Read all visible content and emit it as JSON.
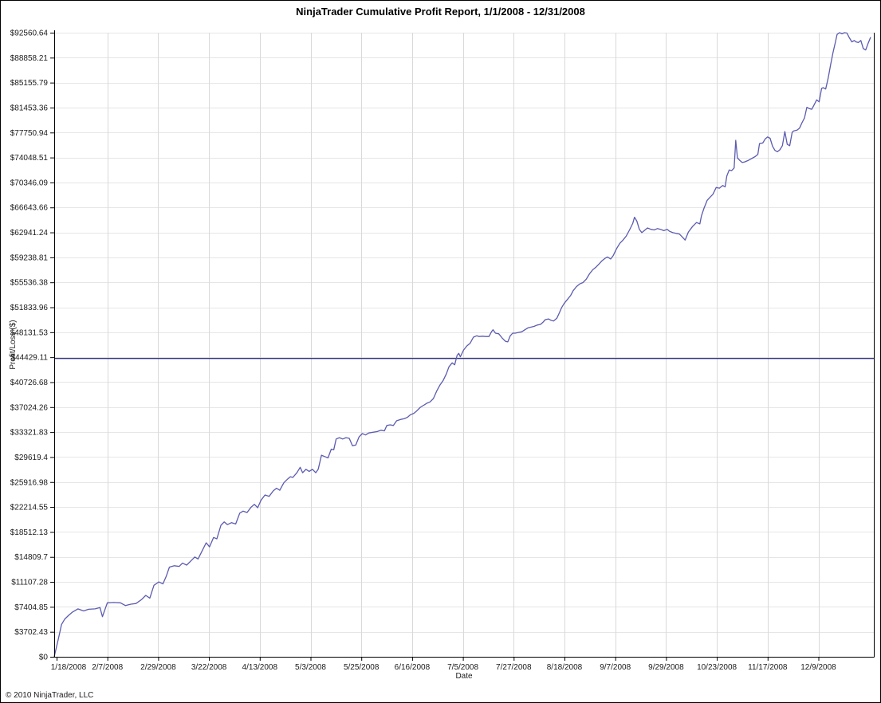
{
  "window": {
    "title": "NinjaTrader Cumulative Profit Report, 1/1/2008 - 12/31/2008"
  },
  "footer": {
    "copyright": "© 2010 NinjaTrader, LLC"
  },
  "colors": {
    "series_line": "#5b5bb0",
    "reference_line": "#32327f",
    "grid_vertical": "#d9d9d9",
    "grid_horizontal": "#e6e6e6",
    "axis": "#000000",
    "label": "#1a1a1a"
  },
  "chart_data": {
    "type": "line",
    "title": "NinjaTrader Cumulative Profit Report, 1/1/2008 - 12/31/2008",
    "xlabel": "Date",
    "ylabel": "Profit/Loss ($)",
    "grid": true,
    "legend": "none",
    "ylim": [
      0,
      92560.64
    ],
    "y_tick_step": 3702.4256,
    "y_tick_labels": [
      "$92560.64",
      "$88858.21",
      "$85155.79",
      "$81453.36",
      "$77750.94",
      "$74048.51",
      "$70346.09",
      "$66643.66",
      "$62941.24",
      "$59238.81",
      "$55536.38",
      "$51833.96",
      "$48131.53",
      "$44429.11",
      "$40726.68",
      "$37024.26",
      "$33321.83",
      "$29619.4",
      "$25916.98",
      "$22214.55",
      "$18512.13",
      "$14809.7",
      "$11107.28",
      "$7404.85",
      "$3702.43",
      "$0"
    ],
    "x_tick_labels": [
      "1/18/2008",
      "2/7/2008",
      "2/29/2008",
      "3/22/2008",
      "4/13/2008",
      "5/3/2008",
      "5/25/2008",
      "6/16/2008",
      "7/5/2008",
      "7/27/2008",
      "8/18/2008",
      "9/7/2008",
      "9/29/2008",
      "10/23/2008",
      "11/17/2008",
      "12/9/2008"
    ],
    "date_range": [
      "1/1/2008",
      "12/31/2008"
    ],
    "reference_line": {
      "value": 44429.11
    },
    "start_value": 0,
    "peak_value": 92560.64,
    "end_value": 91900,
    "series": [
      {
        "name": "Cumulative Profit/Loss",
        "points_time_frac_vs_dollars": [
          [
            0.0,
            0
          ],
          [
            0.005,
            2600
          ],
          [
            0.009,
            4800
          ],
          [
            0.013,
            5600
          ],
          [
            0.018,
            6200
          ],
          [
            0.022,
            6600
          ],
          [
            0.029,
            7100
          ],
          [
            0.036,
            6800
          ],
          [
            0.042,
            7050
          ],
          [
            0.05,
            7100
          ],
          [
            0.056,
            7300
          ],
          [
            0.059,
            5950
          ],
          [
            0.065,
            8000
          ],
          [
            0.073,
            8050
          ],
          [
            0.081,
            8000
          ],
          [
            0.087,
            7600
          ],
          [
            0.094,
            7800
          ],
          [
            0.1,
            7900
          ],
          [
            0.107,
            8500
          ],
          [
            0.112,
            9100
          ],
          [
            0.117,
            8700
          ],
          [
            0.122,
            10600
          ],
          [
            0.128,
            11100
          ],
          [
            0.133,
            10800
          ],
          [
            0.137,
            11900
          ],
          [
            0.141,
            13300
          ],
          [
            0.147,
            13500
          ],
          [
            0.153,
            13400
          ],
          [
            0.157,
            13900
          ],
          [
            0.162,
            13600
          ],
          [
            0.167,
            14200
          ],
          [
            0.172,
            14800
          ],
          [
            0.176,
            14500
          ],
          [
            0.181,
            15700
          ],
          [
            0.186,
            16900
          ],
          [
            0.19,
            16300
          ],
          [
            0.195,
            17700
          ],
          [
            0.199,
            17500
          ],
          [
            0.204,
            19500
          ],
          [
            0.208,
            20000
          ],
          [
            0.212,
            19600
          ],
          [
            0.217,
            19900
          ],
          [
            0.222,
            19700
          ],
          [
            0.227,
            21300
          ],
          [
            0.231,
            21600
          ],
          [
            0.236,
            21400
          ],
          [
            0.241,
            22200
          ],
          [
            0.245,
            22600
          ],
          [
            0.249,
            22100
          ],
          [
            0.253,
            23200
          ],
          [
            0.258,
            24000
          ],
          [
            0.263,
            23800
          ],
          [
            0.268,
            24600
          ],
          [
            0.272,
            25000
          ],
          [
            0.276,
            24700
          ],
          [
            0.281,
            25800
          ],
          [
            0.286,
            26400
          ],
          [
            0.289,
            26700
          ],
          [
            0.292,
            26600
          ],
          [
            0.297,
            27300
          ],
          [
            0.301,
            28100
          ],
          [
            0.304,
            27300
          ],
          [
            0.308,
            27800
          ],
          [
            0.312,
            27500
          ],
          [
            0.316,
            27800
          ],
          [
            0.32,
            27300
          ],
          [
            0.323,
            27800
          ],
          [
            0.327,
            29900
          ],
          [
            0.331,
            29700
          ],
          [
            0.335,
            29500
          ],
          [
            0.339,
            30800
          ],
          [
            0.342,
            30700
          ],
          [
            0.345,
            32300
          ],
          [
            0.349,
            32500
          ],
          [
            0.353,
            32300
          ],
          [
            0.357,
            32500
          ],
          [
            0.361,
            32400
          ],
          [
            0.365,
            31300
          ],
          [
            0.369,
            31400
          ],
          [
            0.373,
            32600
          ],
          [
            0.377,
            33100
          ],
          [
            0.381,
            32900
          ],
          [
            0.385,
            33200
          ],
          [
            0.39,
            33300
          ],
          [
            0.395,
            33400
          ],
          [
            0.4,
            33600
          ],
          [
            0.404,
            33500
          ],
          [
            0.407,
            34300
          ],
          [
            0.411,
            34400
          ],
          [
            0.415,
            34300
          ],
          [
            0.419,
            35000
          ],
          [
            0.424,
            35200
          ],
          [
            0.428,
            35300
          ],
          [
            0.432,
            35500
          ],
          [
            0.436,
            35900
          ],
          [
            0.44,
            36100
          ],
          [
            0.443,
            36400
          ],
          [
            0.448,
            37000
          ],
          [
            0.452,
            37300
          ],
          [
            0.456,
            37600
          ],
          [
            0.46,
            37800
          ],
          [
            0.464,
            38300
          ],
          [
            0.468,
            39400
          ],
          [
            0.472,
            40300
          ],
          [
            0.476,
            41000
          ],
          [
            0.48,
            42000
          ],
          [
            0.483,
            43000
          ],
          [
            0.487,
            43600
          ],
          [
            0.49,
            43300
          ],
          [
            0.493,
            44700
          ],
          [
            0.495,
            45000
          ],
          [
            0.497,
            44500
          ],
          [
            0.501,
            45500
          ],
          [
            0.505,
            46100
          ],
          [
            0.509,
            46500
          ],
          [
            0.513,
            47400
          ],
          [
            0.517,
            47600
          ],
          [
            0.52,
            47500
          ],
          [
            0.524,
            47550
          ],
          [
            0.528,
            47500
          ],
          [
            0.532,
            47500
          ],
          [
            0.535,
            48200
          ],
          [
            0.537,
            48500
          ],
          [
            0.54,
            48000
          ],
          [
            0.544,
            47900
          ],
          [
            0.548,
            47300
          ],
          [
            0.552,
            46800
          ],
          [
            0.555,
            46700
          ],
          [
            0.558,
            47600
          ],
          [
            0.561,
            48000
          ],
          [
            0.564,
            48000
          ],
          [
            0.568,
            48100
          ],
          [
            0.572,
            48200
          ],
          [
            0.576,
            48500
          ],
          [
            0.58,
            48800
          ],
          [
            0.584,
            48900
          ],
          [
            0.587,
            49000
          ],
          [
            0.591,
            49200
          ],
          [
            0.595,
            49300
          ],
          [
            0.598,
            49600
          ],
          [
            0.601,
            50000
          ],
          [
            0.605,
            50100
          ],
          [
            0.608,
            49900
          ],
          [
            0.611,
            49800
          ],
          [
            0.615,
            50200
          ],
          [
            0.618,
            51000
          ],
          [
            0.621,
            51800
          ],
          [
            0.624,
            52400
          ],
          [
            0.628,
            53000
          ],
          [
            0.632,
            53600
          ],
          [
            0.635,
            54300
          ],
          [
            0.639,
            54900
          ],
          [
            0.643,
            55300
          ],
          [
            0.647,
            55500
          ],
          [
            0.651,
            56000
          ],
          [
            0.655,
            56800
          ],
          [
            0.659,
            57400
          ],
          [
            0.663,
            57800
          ],
          [
            0.667,
            58300
          ],
          [
            0.67,
            58700
          ],
          [
            0.674,
            59100
          ],
          [
            0.677,
            59300
          ],
          [
            0.681,
            59000
          ],
          [
            0.684,
            59500
          ],
          [
            0.688,
            60500
          ],
          [
            0.692,
            61300
          ],
          [
            0.696,
            61800
          ],
          [
            0.7,
            62400
          ],
          [
            0.704,
            63300
          ],
          [
            0.708,
            64300
          ],
          [
            0.71,
            65200
          ],
          [
            0.713,
            64600
          ],
          [
            0.716,
            63400
          ],
          [
            0.719,
            62900
          ],
          [
            0.722,
            63200
          ],
          [
            0.726,
            63600
          ],
          [
            0.73,
            63400
          ],
          [
            0.734,
            63300
          ],
          [
            0.738,
            63500
          ],
          [
            0.742,
            63400
          ],
          [
            0.746,
            63200
          ],
          [
            0.75,
            63400
          ],
          [
            0.753,
            63100
          ],
          [
            0.757,
            62900
          ],
          [
            0.761,
            62800
          ],
          [
            0.765,
            62700
          ],
          [
            0.769,
            62200
          ],
          [
            0.772,
            61800
          ],
          [
            0.776,
            63000
          ],
          [
            0.781,
            63800
          ],
          [
            0.786,
            64400
          ],
          [
            0.79,
            64200
          ],
          [
            0.792,
            65400
          ],
          [
            0.795,
            66500
          ],
          [
            0.799,
            67700
          ],
          [
            0.802,
            68100
          ],
          [
            0.806,
            68600
          ],
          [
            0.81,
            69600
          ],
          [
            0.814,
            69500
          ],
          [
            0.818,
            69900
          ],
          [
            0.821,
            69700
          ],
          [
            0.823,
            71300
          ],
          [
            0.826,
            72200
          ],
          [
            0.829,
            72100
          ],
          [
            0.832,
            72500
          ],
          [
            0.834,
            76600
          ],
          [
            0.836,
            74000
          ],
          [
            0.839,
            73600
          ],
          [
            0.842,
            73300
          ],
          [
            0.845,
            73400
          ],
          [
            0.849,
            73600
          ],
          [
            0.852,
            73800
          ],
          [
            0.855,
            74000
          ],
          [
            0.858,
            74200
          ],
          [
            0.861,
            74500
          ],
          [
            0.863,
            76100
          ],
          [
            0.867,
            76200
          ],
          [
            0.87,
            76800
          ],
          [
            0.873,
            77100
          ],
          [
            0.876,
            76900
          ],
          [
            0.879,
            75700
          ],
          [
            0.882,
            75100
          ],
          [
            0.885,
            74900
          ],
          [
            0.888,
            75200
          ],
          [
            0.891,
            75800
          ],
          [
            0.894,
            77900
          ],
          [
            0.897,
            76000
          ],
          [
            0.9,
            75800
          ],
          [
            0.903,
            77800
          ],
          [
            0.905,
            78000
          ],
          [
            0.909,
            78100
          ],
          [
            0.912,
            78400
          ],
          [
            0.915,
            79200
          ],
          [
            0.918,
            79900
          ],
          [
            0.921,
            81500
          ],
          [
            0.924,
            81300
          ],
          [
            0.927,
            81200
          ],
          [
            0.93,
            81900
          ],
          [
            0.933,
            82600
          ],
          [
            0.936,
            82300
          ],
          [
            0.939,
            84300
          ],
          [
            0.941,
            84400
          ],
          [
            0.944,
            84200
          ],
          [
            0.947,
            85800
          ],
          [
            0.95,
            87800
          ],
          [
            0.953,
            89600
          ],
          [
            0.956,
            91200
          ],
          [
            0.958,
            92300
          ],
          [
            0.961,
            92560.64
          ],
          [
            0.964,
            92400
          ],
          [
            0.967,
            92560.64
          ],
          [
            0.97,
            92500
          ],
          [
            0.973,
            91800
          ],
          [
            0.976,
            91200
          ],
          [
            0.979,
            91400
          ],
          [
            0.981,
            91200
          ],
          [
            0.984,
            91100
          ],
          [
            0.987,
            91400
          ],
          [
            0.99,
            90200
          ],
          [
            0.993,
            90000
          ],
          [
            0.996,
            91000
          ],
          [
            0.999,
            91900
          ]
        ]
      }
    ]
  }
}
